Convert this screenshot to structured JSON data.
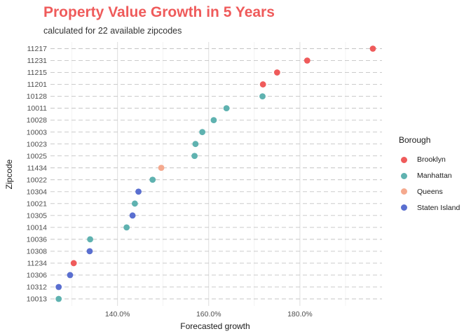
{
  "chart_data": {
    "type": "scatter",
    "title": "Property Value Growth in 5 Years",
    "subtitle": "calculated for 22 available zipcodes",
    "xlabel": "Forecasted growth",
    "ylabel": "Zipcode",
    "xlim": [
      125.3,
      198.0
    ],
    "x_ticks": [
      140,
      160,
      180
    ],
    "x_tick_labels": [
      "140.0%",
      "160.0%",
      "180.0%"
    ],
    "grid": true,
    "legend": {
      "title": "Borough",
      "position": "right"
    },
    "series": [
      {
        "name": "Brooklyn",
        "color": "#ef5b5b",
        "points": [
          {
            "zip": "11217",
            "x": 196.0
          },
          {
            "zip": "11231",
            "x": 181.6
          },
          {
            "zip": "11215",
            "x": 175.0
          },
          {
            "zip": "11201",
            "x": 171.9
          },
          {
            "zip": "11234",
            "x": 130.4
          }
        ]
      },
      {
        "name": "Manhattan",
        "color": "#5fb2b0",
        "points": [
          {
            "zip": "10128",
            "x": 171.8
          },
          {
            "zip": "10011",
            "x": 163.9
          },
          {
            "zip": "10028",
            "x": 161.1
          },
          {
            "zip": "10003",
            "x": 158.6
          },
          {
            "zip": "10023",
            "x": 157.1
          },
          {
            "zip": "10025",
            "x": 156.9
          },
          {
            "zip": "10022",
            "x": 147.7
          },
          {
            "zip": "10021",
            "x": 143.8
          },
          {
            "zip": "10014",
            "x": 142.0
          },
          {
            "zip": "10036",
            "x": 134.0
          },
          {
            "zip": "10013",
            "x": 127.1
          }
        ]
      },
      {
        "name": "Queens",
        "color": "#f5a98e",
        "points": [
          {
            "zip": "11434",
            "x": 149.6
          }
        ]
      },
      {
        "name": "Staten Island",
        "color": "#5a6fd0",
        "points": [
          {
            "zip": "10304",
            "x": 144.6
          },
          {
            "zip": "10305",
            "x": 143.3
          },
          {
            "zip": "10308",
            "x": 133.9
          },
          {
            "zip": "10306",
            "x": 129.6
          },
          {
            "zip": "10312",
            "x": 127.1
          }
        ]
      }
    ],
    "categories": [
      "11217",
      "11231",
      "11215",
      "11201",
      "10128",
      "10011",
      "10028",
      "10003",
      "10023",
      "10025",
      "11434",
      "10022",
      "10304",
      "10021",
      "10305",
      "10014",
      "10036",
      "10308",
      "11234",
      "10306",
      "10312",
      "10013"
    ]
  }
}
